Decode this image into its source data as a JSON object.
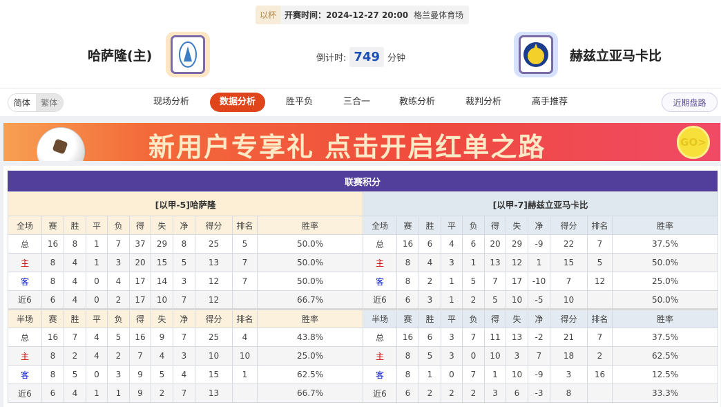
{
  "match": {
    "cup": "以杯",
    "kickoff": "开赛时间：2024-12-27 20:00",
    "venue": "格兰曼体育场",
    "home_team": "哈萨隆(主)",
    "away_team": "赫兹立亚马卡比",
    "countdown_label": "倒计时:",
    "countdown_value": "749",
    "countdown_unit": "分钟"
  },
  "lang": {
    "simplified": "简体",
    "traditional": "繁体"
  },
  "nav": [
    "现场分析",
    "数据分析",
    "胜平负",
    "三合一",
    "教练分析",
    "裁判分析",
    "高手推荐"
  ],
  "nav_active": 1,
  "recent_button": "近期盘路",
  "banner": {
    "text": "新用户专享礼  点击开启红单之路",
    "go": "GO>"
  },
  "standings": {
    "title": "联赛积分",
    "full_header": [
      "全场",
      "赛",
      "胜",
      "平",
      "负",
      "得",
      "失",
      "净",
      "得分",
      "排名",
      "胜率"
    ],
    "half_header": [
      "半场",
      "赛",
      "胜",
      "平",
      "负",
      "得",
      "失",
      "净",
      "得分",
      "排名",
      "胜率"
    ],
    "home": {
      "name": "[以甲-5]哈萨隆",
      "full": [
        [
          "总",
          "16",
          "8",
          "1",
          "7",
          "37",
          "29",
          "8",
          "25",
          "5",
          "50.0%"
        ],
        [
          "主",
          "8",
          "4",
          "1",
          "3",
          "20",
          "15",
          "5",
          "13",
          "7",
          "50.0%"
        ],
        [
          "客",
          "8",
          "4",
          "0",
          "4",
          "17",
          "14",
          "3",
          "12",
          "7",
          "50.0%"
        ],
        [
          "近6",
          "6",
          "4",
          "0",
          "2",
          "17",
          "10",
          "7",
          "12",
          "",
          "66.7%"
        ]
      ],
      "half": [
        [
          "总",
          "16",
          "7",
          "4",
          "5",
          "16",
          "9",
          "7",
          "25",
          "4",
          "43.8%"
        ],
        [
          "主",
          "8",
          "2",
          "4",
          "2",
          "7",
          "4",
          "3",
          "10",
          "10",
          "25.0%"
        ],
        [
          "客",
          "8",
          "5",
          "0",
          "3",
          "9",
          "5",
          "4",
          "15",
          "1",
          "62.5%"
        ],
        [
          "近6",
          "6",
          "4",
          "1",
          "1",
          "9",
          "2",
          "7",
          "13",
          "",
          "66.7%"
        ]
      ]
    },
    "away": {
      "name": "[以甲-7]赫兹立亚马卡比",
      "full": [
        [
          "总",
          "16",
          "6",
          "4",
          "6",
          "20",
          "29",
          "-9",
          "22",
          "7",
          "37.5%"
        ],
        [
          "主",
          "8",
          "4",
          "3",
          "1",
          "13",
          "12",
          "1",
          "15",
          "5",
          "50.0%"
        ],
        [
          "客",
          "8",
          "2",
          "1",
          "5",
          "7",
          "17",
          "-10",
          "7",
          "12",
          "25.0%"
        ],
        [
          "近6",
          "6",
          "3",
          "1",
          "2",
          "5",
          "10",
          "-5",
          "10",
          "",
          "50.0%"
        ]
      ],
      "half": [
        [
          "总",
          "16",
          "6",
          "3",
          "7",
          "11",
          "13",
          "-2",
          "21",
          "7",
          "37.5%"
        ],
        [
          "主",
          "8",
          "5",
          "3",
          "0",
          "10",
          "3",
          "7",
          "18",
          "2",
          "62.5%"
        ],
        [
          "客",
          "8",
          "1",
          "0",
          "7",
          "1",
          "10",
          "-9",
          "3",
          "16",
          "12.5%"
        ],
        [
          "近6",
          "6",
          "2",
          "2",
          "2",
          "3",
          "6",
          "-3",
          "8",
          "",
          "33.3%"
        ]
      ]
    }
  },
  "colors": {
    "title_bar": "#523f9b",
    "nav_active": "#e0441a",
    "home_label": "#d40000",
    "away_label": "#1020d0",
    "countdown": "#1b4fb5"
  }
}
